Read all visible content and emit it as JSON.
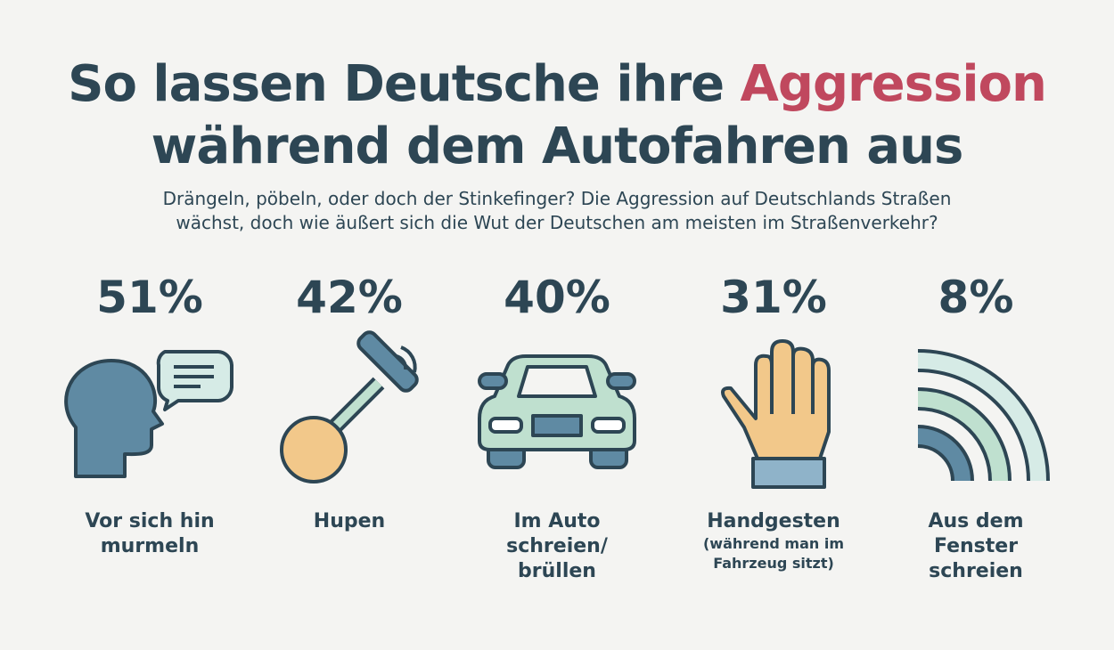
{
  "header": {
    "title": {
      "before": "So lassen Deutsche ihre ",
      "highlight": "Aggression",
      "after": "während dem Autofahren aus"
    },
    "subtitle": [
      "Drängeln, pöbeln, oder doch der Stinkefinger? Die Aggression auf Deutschlands Straßen",
      "wächst, doch wie äußert sich die Wut der Deutschen am meisten im Straßenverkehr?"
    ]
  },
  "items": [
    {
      "value": "51%",
      "label": [
        "Vor sich hin",
        "murmeln"
      ]
    },
    {
      "value": "42%",
      "label": [
        "Hupen"
      ]
    },
    {
      "value": "40%",
      "label": [
        "Im Auto",
        "schreien/",
        "brüllen"
      ]
    },
    {
      "value": "31%",
      "label": [
        "Handgesten"
      ],
      "note": [
        "(während man im",
        "Fahrzeug sitzt)"
      ]
    },
    {
      "value": "8%",
      "label": [
        "Aus dem",
        "Fenster",
        "schreien"
      ]
    }
  ]
}
